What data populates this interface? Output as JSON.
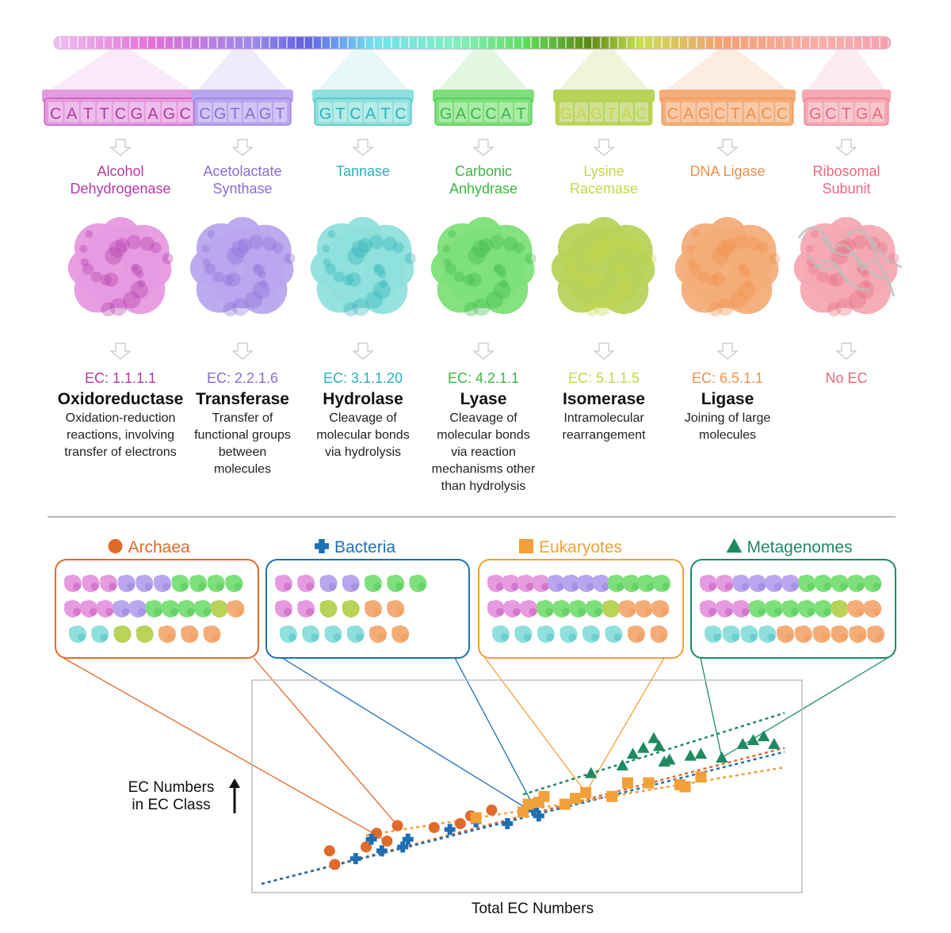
{
  "columns": [
    {
      "sequence": "CATTCGAGC",
      "name": [
        "Alcohol",
        "Dehydrogenase"
      ],
      "ec": "EC: 1.1.1.1",
      "class": "Oxidoreductase",
      "description": [
        "Oxidation-reduction",
        "reactions, involving",
        "transfer of electrons"
      ],
      "color": "#b03aa6",
      "box": "#e69ae0"
    },
    {
      "sequence": "CGTAGT",
      "name": [
        "Acetolactate",
        "Synthase"
      ],
      "ec": "EC: 2.2.1.6",
      "class": "Transferase",
      "description": [
        "Transfer of",
        "functional groups",
        "between",
        "molecules"
      ],
      "color": "#8a6cd6",
      "box": "#b9a6ee"
    },
    {
      "sequence": "GTCATC",
      "name": [
        "Tannase"
      ],
      "ec": "EC: 3.1.1.20",
      "class": "Hydrolase",
      "description": [
        "Cleavage of",
        "molecular bonds",
        "via hydrolysis"
      ],
      "color": "#2ab0b8",
      "box": "#8fe0dc"
    },
    {
      "sequence": "GACCAT",
      "name": [
        "Carbonic",
        "Anhydrase"
      ],
      "ec": "EC: 4.2.1.1",
      "class": "Lyase",
      "description": [
        "Cleavage of",
        "molecular bonds",
        "via reaction",
        "mechanisms other",
        "than hydrolysis"
      ],
      "color": "#3cb844",
      "box": "#7de07a"
    },
    {
      "sequence": "GAGTAC",
      "name": [
        "Lysine",
        "Racemase"
      ],
      "ec": "EC: 5.1.1.5",
      "class": "Isomerase",
      "description": [
        "Intramolecular",
        "rearrangement"
      ],
      "color": "#c6d64a",
      "box": "#b8d25a"
    },
    {
      "sequence": "CAGCTACC",
      "name": [
        "DNA Ligase"
      ],
      "ec": "EC: 6.5.1.1",
      "class": "Ligase",
      "description": [
        "Joining of large",
        "molecules"
      ],
      "color": "#f0904a",
      "box": "#f4ad78"
    },
    {
      "sequence": "GCTGA",
      "name": [
        "Ribosomal",
        "Subunit"
      ],
      "ec": "No EC",
      "class": "",
      "description": [],
      "color": "#e86a7e",
      "box": "#f4a9b4"
    }
  ],
  "domains": [
    {
      "label": "Archaea",
      "symbol": "circle",
      "color": "#e06a2a"
    },
    {
      "label": "Bacteria",
      "symbol": "cross",
      "color": "#1f6fb2"
    },
    {
      "label": "Eukaryotes",
      "symbol": "square",
      "color": "#f2a03a"
    },
    {
      "label": "Metagenomes",
      "symbol": "triangle",
      "color": "#1f8a62"
    }
  ],
  "chart_data": {
    "type": "scatter",
    "xlabel": "Total EC Numbers",
    "ylabel": "EC Numbers in EC Class",
    "xlim": [
      0,
      100
    ],
    "ylim": [
      0,
      100
    ],
    "grid": false,
    "legend_position": "top",
    "series": [
      {
        "name": "Archaea",
        "color": "#e06a2a",
        "marker": "circle",
        "points": [
          [
            14,
            10
          ],
          [
            13,
            17
          ],
          [
            20,
            19
          ],
          [
            24,
            22
          ],
          [
            22,
            26
          ],
          [
            26,
            30
          ],
          [
            33,
            29
          ],
          [
            38,
            31
          ],
          [
            40,
            35
          ],
          [
            44,
            38
          ]
        ],
        "trend": [
          [
            0,
            0
          ],
          [
            50,
            35
          ],
          [
            100,
            70
          ]
        ]
      },
      {
        "name": "Bacteria",
        "color": "#1f6fb2",
        "marker": "cross",
        "points": [
          [
            18,
            13
          ],
          [
            21,
            23
          ],
          [
            23,
            17
          ],
          [
            28,
            23
          ],
          [
            27,
            19
          ],
          [
            36,
            28
          ],
          [
            41,
            32
          ],
          [
            47,
            31
          ],
          [
            52,
            38
          ],
          [
            53,
            35
          ]
        ],
        "trend": [
          [
            0,
            0
          ],
          [
            50,
            34
          ],
          [
            100,
            68
          ]
        ]
      },
      {
        "name": "Eukaryotes",
        "color": "#f2a03a",
        "marker": "square",
        "points": [
          [
            41,
            34
          ],
          [
            50,
            37
          ],
          [
            51,
            41
          ],
          [
            53,
            42
          ],
          [
            54,
            45
          ],
          [
            58,
            41
          ],
          [
            60,
            44
          ],
          [
            62,
            47
          ],
          [
            67,
            45
          ],
          [
            70,
            52
          ],
          [
            74,
            52
          ],
          [
            80,
            51
          ],
          [
            81,
            50
          ],
          [
            84,
            55
          ]
        ],
        "trend": [
          [
            20,
            25
          ],
          [
            60,
            42
          ],
          [
            100,
            60
          ]
        ]
      },
      {
        "name": "Metagenomes",
        "color": "#1f8a62",
        "marker": "triangle",
        "points": [
          [
            63,
            57
          ],
          [
            69,
            61
          ],
          [
            71,
            67
          ],
          [
            73,
            70
          ],
          [
            76,
            71
          ],
          [
            75,
            75
          ],
          [
            77,
            63
          ],
          [
            78,
            64
          ],
          [
            82,
            66
          ],
          [
            84,
            67
          ],
          [
            88,
            65
          ],
          [
            92,
            72
          ],
          [
            94,
            74
          ],
          [
            96,
            76
          ],
          [
            98,
            72
          ]
        ],
        "trend": [
          [
            50,
            46
          ],
          [
            100,
            88
          ]
        ]
      }
    ]
  }
}
